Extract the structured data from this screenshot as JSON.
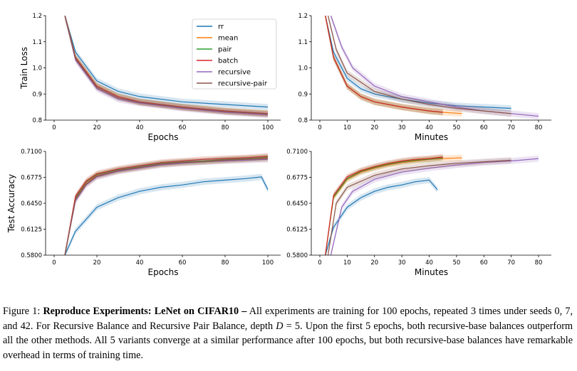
{
  "legend": [
    "rr",
    "mean",
    "pair",
    "batch",
    "recursive",
    "recursive-pair"
  ],
  "colors": {
    "rr": "#1f77b4",
    "mean": "#ff7f0e",
    "pair": "#2ca02c",
    "batch": "#d62728",
    "recursive": "#9467bd",
    "recursive-pair": "#8c564b"
  },
  "chart_data": [
    {
      "type": "line",
      "position": "top-left",
      "xlabel": "Epochs",
      "ylabel": "Train Loss",
      "xlim": [
        0,
        100
      ],
      "ylim": [
        0.8,
        1.2
      ],
      "xticks": [
        "0",
        "20",
        "40",
        "60",
        "80",
        "100"
      ],
      "yticks": [
        "0.8",
        "0.9",
        "1.0",
        "1.1",
        "1.2"
      ],
      "legend": "top-right",
      "series": [
        {
          "name": "rr",
          "x": [
            5,
            10,
            20,
            30,
            40,
            60,
            80,
            100
          ],
          "y": [
            1.2,
            1.06,
            0.95,
            0.91,
            0.89,
            0.87,
            0.86,
            0.85
          ]
        },
        {
          "name": "mean",
          "x": [
            5,
            10,
            20,
            30,
            40,
            60,
            80,
            100
          ],
          "y": [
            1.2,
            1.04,
            0.93,
            0.89,
            0.87,
            0.85,
            0.835,
            0.825
          ]
        },
        {
          "name": "pair",
          "x": [
            5,
            10,
            20,
            30,
            40,
            60,
            80,
            100
          ],
          "y": [
            1.2,
            1.04,
            0.93,
            0.89,
            0.87,
            0.85,
            0.835,
            0.825
          ]
        },
        {
          "name": "batch",
          "x": [
            5,
            10,
            20,
            30,
            40,
            60,
            80,
            100
          ],
          "y": [
            1.2,
            1.04,
            0.93,
            0.89,
            0.87,
            0.85,
            0.835,
            0.825
          ]
        },
        {
          "name": "recursive",
          "x": [
            5,
            10,
            20,
            30,
            40,
            60,
            80,
            100
          ],
          "y": [
            1.2,
            1.03,
            0.92,
            0.88,
            0.865,
            0.845,
            0.83,
            0.82
          ]
        },
        {
          "name": "recursive-pair",
          "x": [
            5,
            10,
            20,
            30,
            40,
            60,
            80,
            100
          ],
          "y": [
            1.2,
            1.035,
            0.925,
            0.885,
            0.868,
            0.848,
            0.833,
            0.823
          ]
        }
      ]
    },
    {
      "type": "line",
      "position": "top-right",
      "xlabel": "Minutes",
      "ylabel": "",
      "xlim": [
        0,
        80
      ],
      "ylim": [
        0.8,
        1.2
      ],
      "xticks": [
        "0",
        "10",
        "20",
        "30",
        "40",
        "50",
        "60",
        "70",
        "80"
      ],
      "yticks": [
        "0.8",
        "0.9",
        "1.0",
        "1.1",
        "1.2"
      ],
      "series": [
        {
          "name": "rr",
          "x": [
            2,
            5,
            10,
            15,
            20,
            30,
            40,
            50,
            60,
            70
          ],
          "y": [
            1.2,
            1.06,
            0.96,
            0.92,
            0.9,
            0.88,
            0.865,
            0.855,
            0.85,
            0.845
          ]
        },
        {
          "name": "mean",
          "x": [
            2,
            5,
            10,
            15,
            20,
            30,
            40,
            45,
            52
          ],
          "y": [
            1.2,
            1.04,
            0.93,
            0.89,
            0.87,
            0.85,
            0.835,
            0.83,
            0.825
          ]
        },
        {
          "name": "pair",
          "x": [
            2,
            5,
            10,
            15,
            20,
            30,
            40,
            45
          ],
          "y": [
            1.2,
            1.04,
            0.93,
            0.89,
            0.87,
            0.85,
            0.835,
            0.83
          ]
        },
        {
          "name": "batch",
          "x": [
            2,
            5,
            10,
            15,
            20,
            30,
            40,
            45
          ],
          "y": [
            1.2,
            1.04,
            0.93,
            0.89,
            0.87,
            0.85,
            0.835,
            0.83
          ]
        },
        {
          "name": "recursive",
          "x": [
            4,
            8,
            12,
            20,
            30,
            40,
            50,
            60,
            70,
            80
          ],
          "y": [
            1.2,
            1.08,
            1.0,
            0.93,
            0.89,
            0.87,
            0.85,
            0.835,
            0.825,
            0.815
          ]
        },
        {
          "name": "recursive-pair",
          "x": [
            3,
            6,
            10,
            20,
            30,
            40,
            50,
            60,
            70
          ],
          "y": [
            1.2,
            1.07,
            0.98,
            0.91,
            0.88,
            0.86,
            0.845,
            0.835,
            0.825
          ]
        }
      ]
    },
    {
      "type": "line",
      "position": "bottom-left",
      "xlabel": "Epochs",
      "ylabel": "Test Accuracy",
      "xlim": [
        0,
        100
      ],
      "ylim": [
        0.58,
        0.71
      ],
      "xticks": [
        "0",
        "20",
        "40",
        "60",
        "80",
        "100"
      ],
      "yticks": [
        "0.5800",
        "0.6125",
        "0.6450",
        "0.6775",
        "0.7100"
      ],
      "series": [
        {
          "name": "rr",
          "x": [
            5,
            10,
            15,
            20,
            30,
            40,
            50,
            60,
            70,
            80,
            90,
            97,
            100
          ],
          "y": [
            0.58,
            0.61,
            0.625,
            0.64,
            0.652,
            0.66,
            0.665,
            0.668,
            0.672,
            0.674,
            0.676,
            0.678,
            0.662
          ]
        },
        {
          "name": "mean",
          "x": [
            5,
            10,
            15,
            20,
            30,
            40,
            50,
            60,
            70,
            80,
            90,
            100
          ],
          "y": [
            0.58,
            0.65,
            0.67,
            0.68,
            0.686,
            0.69,
            0.694,
            0.696,
            0.698,
            0.699,
            0.701,
            0.702
          ]
        },
        {
          "name": "pair",
          "x": [
            5,
            10,
            15,
            20,
            30,
            40,
            50,
            60,
            70,
            80,
            90,
            100
          ],
          "y": [
            0.58,
            0.652,
            0.672,
            0.681,
            0.687,
            0.691,
            0.695,
            0.697,
            0.698,
            0.7,
            0.701,
            0.703
          ]
        },
        {
          "name": "batch",
          "x": [
            5,
            10,
            15,
            20,
            30,
            40,
            50,
            60,
            70,
            80,
            90,
            100
          ],
          "y": [
            0.58,
            0.654,
            0.673,
            0.682,
            0.688,
            0.692,
            0.696,
            0.698,
            0.7,
            0.701,
            0.702,
            0.704
          ]
        },
        {
          "name": "recursive",
          "x": [
            5,
            10,
            15,
            20,
            30,
            40,
            50,
            60,
            70,
            80,
            90,
            100
          ],
          "y": [
            0.58,
            0.648,
            0.668,
            0.678,
            0.685,
            0.689,
            0.693,
            0.695,
            0.697,
            0.698,
            0.699,
            0.7
          ]
        },
        {
          "name": "recursive-pair",
          "x": [
            5,
            10,
            15,
            20,
            30,
            40,
            50,
            60,
            70,
            80,
            90,
            100
          ],
          "y": [
            0.58,
            0.65,
            0.669,
            0.679,
            0.686,
            0.69,
            0.694,
            0.696,
            0.697,
            0.699,
            0.7,
            0.701
          ]
        }
      ]
    },
    {
      "type": "line",
      "position": "bottom-right",
      "xlabel": "Minutes",
      "ylabel": "",
      "xlim": [
        0,
        80
      ],
      "ylim": [
        0.58,
        0.71
      ],
      "xticks": [
        "0",
        "10",
        "20",
        "30",
        "40",
        "50",
        "60",
        "70",
        "80"
      ],
      "yticks": [
        "0.5800",
        "0.6125",
        "0.6450",
        "0.6775",
        "0.7100"
      ],
      "series": [
        {
          "name": "rr",
          "x": [
            2,
            5,
            10,
            15,
            20,
            25,
            30,
            35,
            40,
            43
          ],
          "y": [
            0.58,
            0.615,
            0.64,
            0.652,
            0.66,
            0.665,
            0.668,
            0.672,
            0.674,
            0.662
          ]
        },
        {
          "name": "mean",
          "x": [
            2,
            5,
            10,
            15,
            20,
            25,
            30,
            35,
            40,
            45,
            52
          ],
          "y": [
            0.58,
            0.652,
            0.675,
            0.684,
            0.689,
            0.693,
            0.696,
            0.698,
            0.7,
            0.701,
            0.702
          ]
        },
        {
          "name": "pair",
          "x": [
            2,
            5,
            10,
            15,
            20,
            25,
            30,
            35,
            40,
            45
          ],
          "y": [
            0.58,
            0.653,
            0.676,
            0.685,
            0.69,
            0.694,
            0.697,
            0.699,
            0.7,
            0.702
          ]
        },
        {
          "name": "batch",
          "x": [
            2,
            5,
            10,
            15,
            20,
            25,
            30,
            35,
            40,
            45
          ],
          "y": [
            0.58,
            0.655,
            0.678,
            0.686,
            0.691,
            0.695,
            0.698,
            0.7,
            0.701,
            0.703
          ]
        },
        {
          "name": "recursive",
          "x": [
            4,
            8,
            12,
            20,
            30,
            40,
            50,
            60,
            70,
            80
          ],
          "y": [
            0.58,
            0.64,
            0.66,
            0.675,
            0.684,
            0.689,
            0.693,
            0.696,
            0.698,
            0.701
          ]
        },
        {
          "name": "recursive-pair",
          "x": [
            3,
            6,
            10,
            20,
            30,
            40,
            50,
            60,
            70
          ],
          "y": [
            0.58,
            0.645,
            0.665,
            0.68,
            0.688,
            0.692,
            0.695,
            0.697,
            0.699
          ]
        }
      ]
    }
  ],
  "caption": {
    "label": "Figure 1: ",
    "title": "Reproduce Experiments: LeNet on CIFAR10 –",
    "body_1": " All experiments are training for 100 epochs, repeated 3 times under seeds 0, 7, and 42. For Recursive Balance and Recursive Pair Balance, depth ",
    "math_var": "D",
    "math_eq": " = 5",
    "body_2": ". Upon the first 5 epochs, both recursive-base balances outperform all the other methods. All 5 variants converge at a similar performance after 100 epochs, but both recursive-base balances have remarkable overhead in terms of training time."
  }
}
